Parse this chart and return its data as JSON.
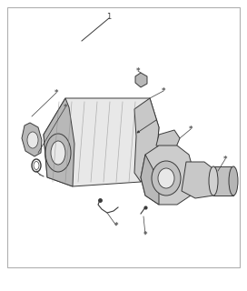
{
  "background_color": "#ffffff",
  "border_color": "#b0b0b0",
  "fig_width": 2.72,
  "fig_height": 3.2,
  "dpi": 100,
  "callout_number": "1",
  "line_color": "#3a3a3a",
  "part_fill": "#d4d4d4",
  "part_fill_dark": "#b8b8b8",
  "part_fill_light": "#e8e8e8",
  "asterisk_color": "#555555"
}
